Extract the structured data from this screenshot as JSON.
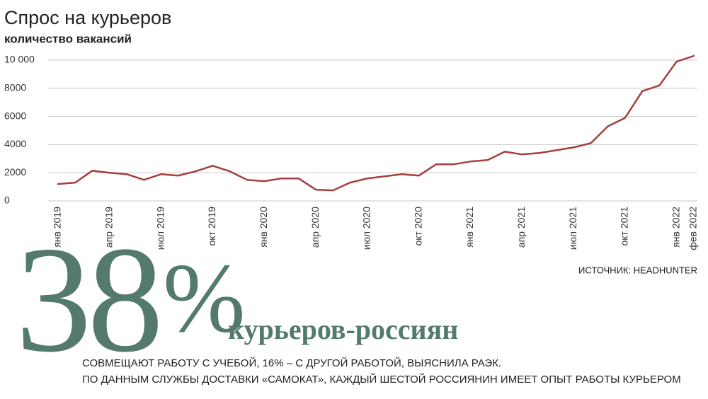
{
  "chart_data": {
    "type": "line",
    "title": "Спрос на курьеров",
    "subtitle": "количество вакансий",
    "source": "ИСТОЧНИК: HEADHUNTER",
    "categories": [
      "янв 2019",
      null,
      null,
      "апр 2019",
      null,
      null,
      "июл 2019",
      null,
      null,
      "окт 2019",
      null,
      null,
      "янв 2020",
      null,
      null,
      "апр 2020",
      null,
      null,
      "июл 2020",
      null,
      null,
      "окт 2020",
      null,
      null,
      "янв 2021",
      null,
      null,
      "апр 2021",
      null,
      null,
      "июл 2021",
      null,
      null,
      "окт 2021",
      null,
      null,
      "янв 2022",
      "фев 2022"
    ],
    "values": [
      1200,
      1300,
      2150,
      2000,
      1900,
      1500,
      1900,
      1800,
      2100,
      2500,
      2100,
      1500,
      1400,
      1600,
      1600,
      800,
      750,
      1300,
      1600,
      1750,
      1900,
      1800,
      2600,
      2600,
      2800,
      2900,
      3500,
      3300,
      3400,
      3600,
      3800,
      4100,
      5300,
      5900,
      7800,
      8200,
      9900,
      10300
    ],
    "color": "#a3403c",
    "ylim": [
      0,
      10000
    ],
    "yticks": [
      0,
      2000,
      4000,
      6000,
      8000,
      {
        "value": 10000,
        "label": "10 000"
      }
    ],
    "grid": true
  },
  "callout": {
    "number": "38",
    "unit": "%",
    "headline": "курьеров-россиян",
    "line1": "СОВМЕЩАЮТ РАБОТУ С УЧЕБОЙ, 16% – С ДРУГОЙ РАБОТОЙ, ВЫЯСНИЛА РАЭК.",
    "line2": "ПО ДАННЫМ СЛУЖБЫ ДОСТАВКИ «САМОКАТ», КАЖДЫЙ ШЕСТОЙ РОССИЯНИН ИМЕЕТ ОПЫТ РАБОТЫ КУРЬЕРОМ"
  }
}
